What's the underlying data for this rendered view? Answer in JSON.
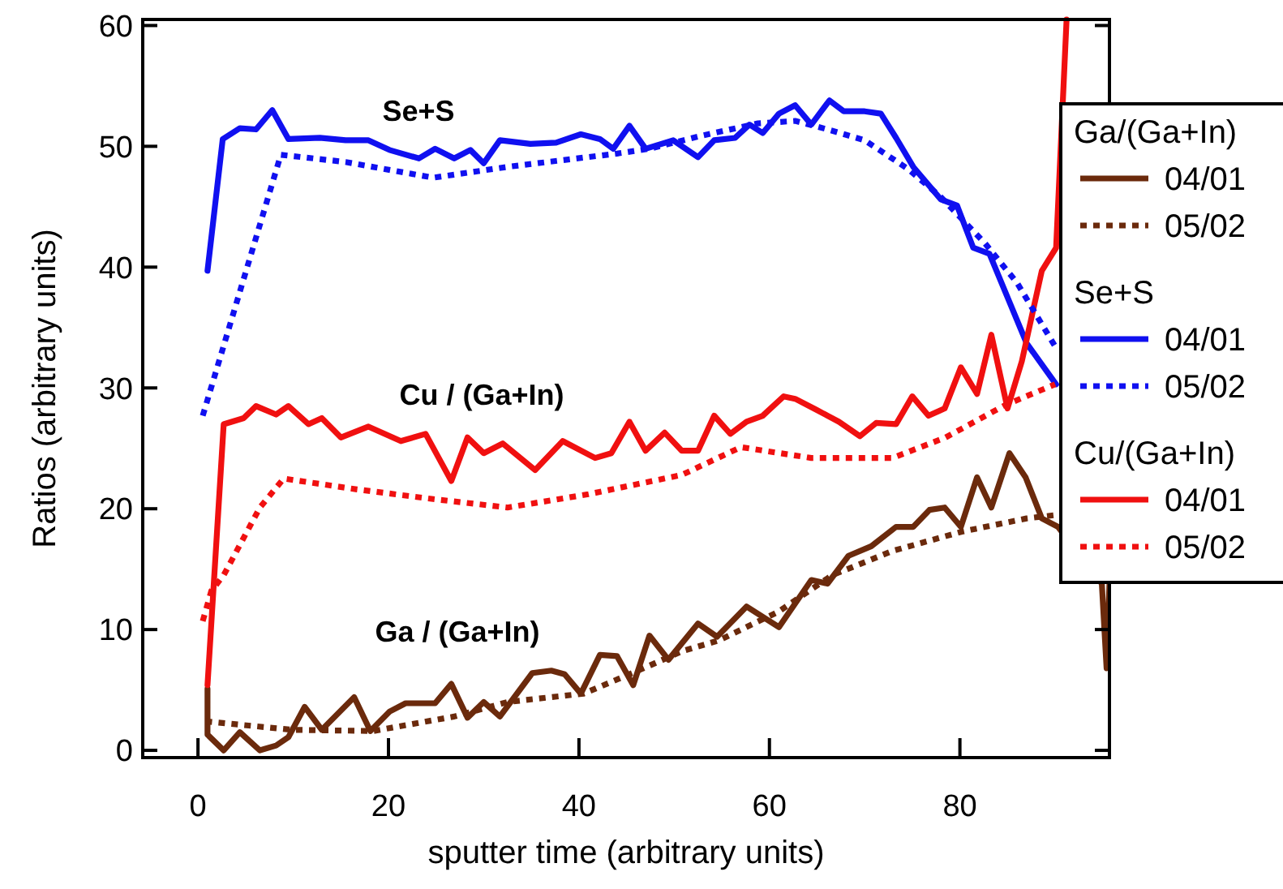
{
  "chart_data": {
    "type": "line",
    "xlabel": "sputter time (arbitrary units)",
    "ylabel": "Ratios (arbitrary units)",
    "xlim": [
      -5.8,
      95.7
    ],
    "ylim": [
      -0.6,
      60.5
    ],
    "xticks": [
      0,
      20,
      40,
      60,
      80
    ],
    "yticks": [
      0,
      10,
      20,
      30,
      40,
      50,
      60
    ],
    "grid": false,
    "legend": "right",
    "marker": "none",
    "annotations": [
      "Se+S",
      "Cu / (Ga+In)",
      "Ga / (Ga+In)",
      "Ga/(Ga+In)",
      "Se+S",
      "Cu/(Ga+In)"
    ],
    "series": [
      {
        "name": "04/01",
        "color": "#6b2a0c",
        "line_style": "solid",
        "x": [
          1,
          1,
          2.7,
          4.4,
          6.5,
          8.2,
          9.5,
          11.2,
          13,
          16.4,
          18.1,
          20.1,
          21.8,
          24.9,
          26.6,
          28.3,
          30,
          31.7,
          35.1,
          37.1,
          38.5,
          40.2,
          42.2,
          44,
          45.7,
          47.4,
          49.4,
          52.5,
          54.5,
          57.6,
          61,
          64.4,
          66.1,
          68.3,
          70.7,
          73.3,
          75.1,
          76.8,
          78.4,
          80.1,
          81.8,
          83.3,
          85.2,
          86.9,
          88.6,
          90.3,
          94.9,
          95.4,
          95.7
        ],
        "values": [
          5.1,
          1.3,
          0,
          1.5,
          0,
          0.4,
          1.1,
          3.6,
          1.7,
          4.4,
          1.6,
          3.2,
          3.9,
          3.9,
          5.5,
          2.7,
          4,
          2.8,
          6.4,
          6.6,
          6.3,
          4.7,
          7.9,
          7.8,
          5.4,
          9.5,
          7.5,
          10.5,
          9.4,
          11.9,
          10.2,
          14.1,
          13.8,
          16.1,
          16.9,
          18.5,
          18.5,
          19.9,
          20.1,
          18.5,
          22.6,
          20.1,
          24.6,
          22.6,
          19.2,
          18.5,
          13.8,
          6.8,
          13.8
        ]
      },
      {
        "name": "05/02",
        "color": "#6b2a0c",
        "line_style": "dotted",
        "x": [
          0.8,
          9.9,
          18.4,
          26.9,
          32.5,
          40.5,
          46.8,
          50.8,
          54.7,
          61,
          66.6,
          72.9,
          80.2,
          87,
          90.3
        ],
        "values": [
          2.4,
          1.7,
          1.6,
          2.8,
          4,
          4.7,
          6.8,
          8.2,
          9.1,
          11.5,
          14.5,
          16.5,
          18.1,
          19.2,
          19.5
        ]
      },
      {
        "name": "04/01",
        "color": "#1010f0",
        "line_style": "solid",
        "x": [
          1,
          2.6,
          4.4,
          6.1,
          7.8,
          9.5,
          12.8,
          15.5,
          17.9,
          20.1,
          23.2,
          24.9,
          26.9,
          28.6,
          30,
          31.7,
          34.9,
          37.6,
          40.2,
          42.2,
          43.6,
          45.3,
          47,
          49.9,
          52.5,
          54.2,
          56.4,
          57.9,
          59.3,
          61,
          62.7,
          64.4,
          66.3,
          67.8,
          70,
          71.7,
          73.3,
          75.1,
          78,
          79.7,
          81.4,
          83.1,
          87,
          90.1
        ],
        "values": [
          39.7,
          50.6,
          51.5,
          51.4,
          53,
          50.6,
          50.7,
          50.5,
          50.5,
          49.7,
          49,
          49.8,
          49,
          49.7,
          48.6,
          50.5,
          50.2,
          50.3,
          51,
          50.6,
          49.8,
          51.7,
          49.8,
          50.5,
          49.1,
          50.5,
          50.7,
          51.8,
          51.1,
          52.7,
          53.4,
          51.8,
          53.8,
          52.9,
          52.9,
          52.7,
          50.7,
          48.3,
          45.6,
          45.1,
          41.6,
          41.1,
          33.7,
          30.3
        ]
      },
      {
        "name": "05/02",
        "color": "#1010f0",
        "line_style": "dotted",
        "x": [
          0.5,
          8.7,
          15.5,
          24.7,
          32.5,
          44,
          47.4,
          53,
          58.8,
          62.7,
          66.1,
          70,
          74.6,
          78,
          82.6,
          86,
          90.1
        ],
        "values": [
          27.7,
          49.3,
          48.7,
          47.4,
          48.3,
          49.4,
          49.8,
          50.9,
          51.9,
          52.1,
          51.4,
          50.5,
          48.1,
          45.8,
          42,
          38.7,
          33.3
        ]
      },
      {
        "name": "04/01",
        "color": "#f01010",
        "line_style": "solid",
        "x": [
          1,
          2.7,
          4.8,
          6.1,
          8.2,
          9.5,
          11.6,
          13,
          15,
          17.9,
          21.3,
          23.9,
          26.6,
          28.3,
          30,
          32,
          35.4,
          38.3,
          41.7,
          43.4,
          45.3,
          47,
          49,
          50.8,
          52.5,
          54.2,
          55.9,
          57.6,
          59.3,
          61.5,
          62.7,
          64.9,
          67.3,
          69.5,
          71.2,
          73.3,
          75,
          76.7,
          78.4,
          80.1,
          81.8,
          83.3,
          85,
          86.5,
          88.6,
          90.1,
          91.2
        ],
        "values": [
          5.4,
          27,
          27.5,
          28.5,
          27.8,
          28.5,
          27,
          27.5,
          25.9,
          26.8,
          25.6,
          26.2,
          22.3,
          25.9,
          24.6,
          25.4,
          23.2,
          25.6,
          24.2,
          24.6,
          27.2,
          24.8,
          26.3,
          24.8,
          24.8,
          27.7,
          26.2,
          27.2,
          27.7,
          29.3,
          29.1,
          28.2,
          27.2,
          26,
          27.1,
          27,
          29.3,
          27.7,
          28.3,
          31.7,
          29.5,
          34.4,
          28.3,
          32.2,
          39.7,
          41.6,
          60.5
        ]
      },
      {
        "name": "05/02",
        "color": "#f01010",
        "line_style": "dotted",
        "x": [
          0.5,
          1.4,
          2.7,
          6.5,
          9,
          16.7,
          24.7,
          32.5,
          41,
          50.8,
          57,
          64.4,
          72.9,
          78.5,
          84.8,
          90
        ],
        "values": [
          10.7,
          13.2,
          14.5,
          20.1,
          22.5,
          21.6,
          20.8,
          20.1,
          21.2,
          22.8,
          25.1,
          24.2,
          24.2,
          25.9,
          28.6,
          30.3
        ]
      }
    ]
  }
}
